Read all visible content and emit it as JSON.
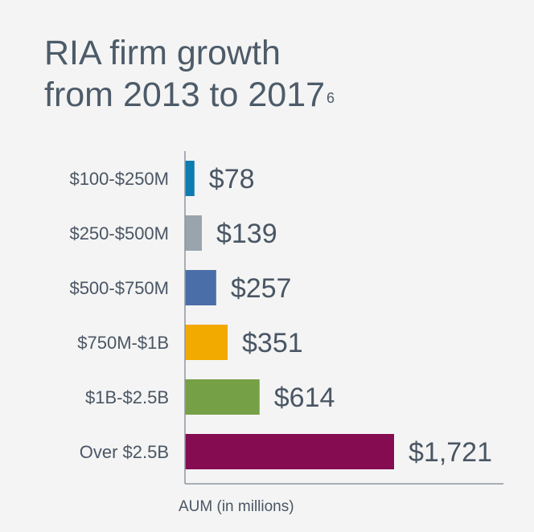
{
  "title": {
    "line1": "RIA firm growth",
    "line2": "from 2013 to 2017",
    "footnote_mark": "6"
  },
  "chart_data": {
    "type": "bar",
    "orientation": "horizontal",
    "categories": [
      "$100-$250M",
      "$250-$500M",
      "$500-$750M",
      "$750M-$1B",
      "$1B-$2.5B",
      "Over $2.5B"
    ],
    "values": [
      78,
      139,
      257,
      351,
      614,
      1721
    ],
    "value_labels": [
      "$78",
      "$139",
      "$257",
      "$351",
      "$614",
      "$1,721"
    ],
    "colors": [
      "#0e7cb0",
      "#9aa4ad",
      "#4a6ea8",
      "#f2a900",
      "#76a046",
      "#860c52"
    ],
    "xlabel": "AUM (in millions)",
    "xlim": [
      0,
      2300
    ],
    "grid": false
  }
}
